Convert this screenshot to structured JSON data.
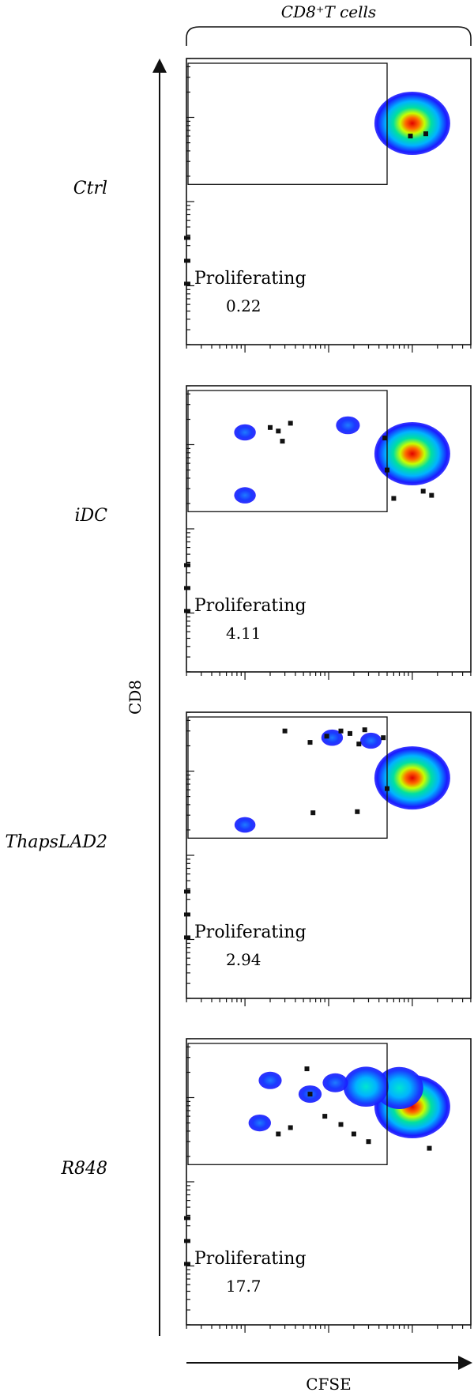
{
  "chart_data": {
    "type": "scatter",
    "title": "CD8⁺T cells",
    "xlabel": "CFSE",
    "ylabel": "CD8",
    "gate_label": "Proliferating",
    "colors": [
      "#1a1aff",
      "#00b4ff",
      "#00e0a0",
      "#c8ff00",
      "#ff6a00",
      "#e00000"
    ],
    "panels": [
      {
        "condition": "Ctrl",
        "proliferating_percent": "0.22",
        "populations": [
          {
            "cfse": 1000,
            "cd8": 850,
            "weight": 1.0,
            "density": "high"
          }
        ],
        "events": [
          [
            950,
            600
          ],
          [
            1450,
            640
          ]
        ]
      },
      {
        "condition": "iDC",
        "proliferating_percent": "4.11",
        "populations": [
          {
            "cfse": 1000,
            "cd8": 780,
            "weight": 1.0,
            "density": "high"
          },
          {
            "cfse": 170,
            "cd8": 1700,
            "weight": 0.45,
            "density": "low"
          },
          {
            "cfse": 10,
            "cd8": 1400,
            "weight": 0.3,
            "density": "low"
          },
          {
            "cfse": 10,
            "cd8": 250,
            "weight": 0.3,
            "density": "low"
          }
        ],
        "events": [
          [
            20,
            1600
          ],
          [
            25,
            1450
          ],
          [
            28,
            1100
          ],
          [
            35,
            1800
          ],
          [
            470,
            1200
          ],
          [
            500,
            500
          ],
          [
            600,
            230
          ],
          [
            1350,
            280
          ],
          [
            1700,
            250
          ]
        ]
      },
      {
        "condition": "ThapsLAD2",
        "proliferating_percent": "2.94",
        "populations": [
          {
            "cfse": 1000,
            "cd8": 830,
            "weight": 1.0,
            "density": "high"
          },
          {
            "cfse": 110,
            "cd8": 2500,
            "weight": 0.3,
            "density": "low"
          },
          {
            "cfse": 320,
            "cd8": 2300,
            "weight": 0.28,
            "density": "low"
          },
          {
            "cfse": 10,
            "cd8": 230,
            "weight": 0.25,
            "density": "low"
          }
        ],
        "events": [
          [
            30,
            3000
          ],
          [
            60,
            2200
          ],
          [
            95,
            2600
          ],
          [
            140,
            3000
          ],
          [
            180,
            2800
          ],
          [
            230,
            2100
          ],
          [
            270,
            3100
          ],
          [
            450,
            2500
          ],
          [
            500,
            620
          ],
          [
            65,
            320
          ],
          [
            220,
            330
          ]
        ]
      },
      {
        "condition": "R848",
        "proliferating_percent": "17.7",
        "populations": [
          {
            "cfse": 1000,
            "cd8": 780,
            "weight": 1.0,
            "density": "high"
          },
          {
            "cfse": 700,
            "cd8": 1300,
            "weight": 0.75,
            "density": "mid"
          },
          {
            "cfse": 280,
            "cd8": 1350,
            "weight": 0.65,
            "density": "mid"
          },
          {
            "cfse": 120,
            "cd8": 1500,
            "weight": 0.55,
            "density": "low"
          },
          {
            "cfse": 60,
            "cd8": 1100,
            "weight": 0.4,
            "density": "low"
          },
          {
            "cfse": 20,
            "cd8": 1600,
            "weight": 0.4,
            "density": "low"
          },
          {
            "cfse": 15,
            "cd8": 500,
            "weight": 0.35,
            "density": "low"
          }
        ],
        "events": [
          [
            25,
            370
          ],
          [
            35,
            440
          ],
          [
            55,
            2200
          ],
          [
            60,
            1100
          ],
          [
            90,
            600
          ],
          [
            140,
            480
          ],
          [
            200,
            370
          ],
          [
            300,
            300
          ],
          [
            1600,
            250
          ]
        ]
      }
    ]
  }
}
